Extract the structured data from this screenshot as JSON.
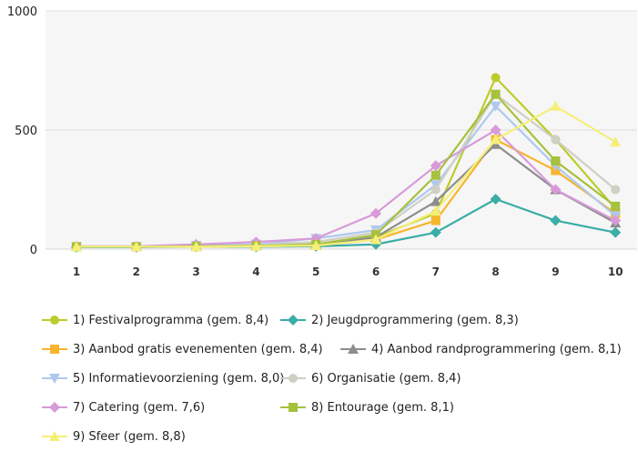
{
  "chart_data": {
    "type": "line",
    "x": [
      "1",
      "2",
      "3",
      "4",
      "5",
      "6",
      "7",
      "8",
      "9",
      "10"
    ],
    "ylim": [
      0,
      1000
    ],
    "yticks": [
      "0",
      "500",
      "1000"
    ],
    "grid": "horizontal",
    "legend_position": "bottom",
    "series": [
      {
        "name": "1) Festivalprogramma (gem. 8,4)",
        "color": "#bccc2a",
        "marker": "circle",
        "values": [
          10,
          10,
          12,
          12,
          18,
          50,
          150,
          720,
          460,
          170
        ]
      },
      {
        "name": "2) Jeugdprogrammering (gem. 8,3)",
        "color": "#3aada7",
        "marker": "diamond",
        "values": [
          8,
          8,
          10,
          10,
          12,
          20,
          70,
          210,
          120,
          70
        ]
      },
      {
        "name": "3) Aanbod gratis evenementen (gem. 8,4)",
        "color": "#f7b52c",
        "marker": "square",
        "values": [
          10,
          10,
          10,
          12,
          15,
          40,
          120,
          460,
          330,
          150
        ]
      },
      {
        "name": "4) Aanbod randprogrammering (gem. 8,1)",
        "color": "#8d8d8d",
        "marker": "triangle",
        "values": [
          10,
          10,
          12,
          14,
          20,
          50,
          200,
          440,
          250,
          110
        ]
      },
      {
        "name": "5) Informatievoorziening (gem. 8,0)",
        "color": "#aec8ef",
        "marker": "triangle-down",
        "values": [
          10,
          10,
          15,
          20,
          45,
          80,
          270,
          600,
          350,
          140
        ]
      },
      {
        "name": "6) Organisatie (gem. 8,4)",
        "color": "#cfcfc4",
        "marker": "circle",
        "values": [
          10,
          10,
          12,
          18,
          30,
          70,
          250,
          650,
          460,
          250
        ]
      },
      {
        "name": "7) Catering (gem. 7,6)",
        "color": "#d89ad8",
        "marker": "diamond",
        "values": [
          12,
          12,
          20,
          30,
          45,
          150,
          350,
          500,
          250,
          120
        ]
      },
      {
        "name": "8) Entourage (gem. 8,1)",
        "color": "#a6c13c",
        "marker": "square",
        "values": [
          10,
          10,
          12,
          14,
          20,
          60,
          310,
          650,
          370,
          180
        ]
      },
      {
        "name": "9) Sfeer (gem. 8,8)",
        "color": "#f5ef7a",
        "marker": "triangle",
        "values": [
          10,
          10,
          10,
          12,
          15,
          40,
          160,
          460,
          600,
          450
        ]
      }
    ]
  }
}
